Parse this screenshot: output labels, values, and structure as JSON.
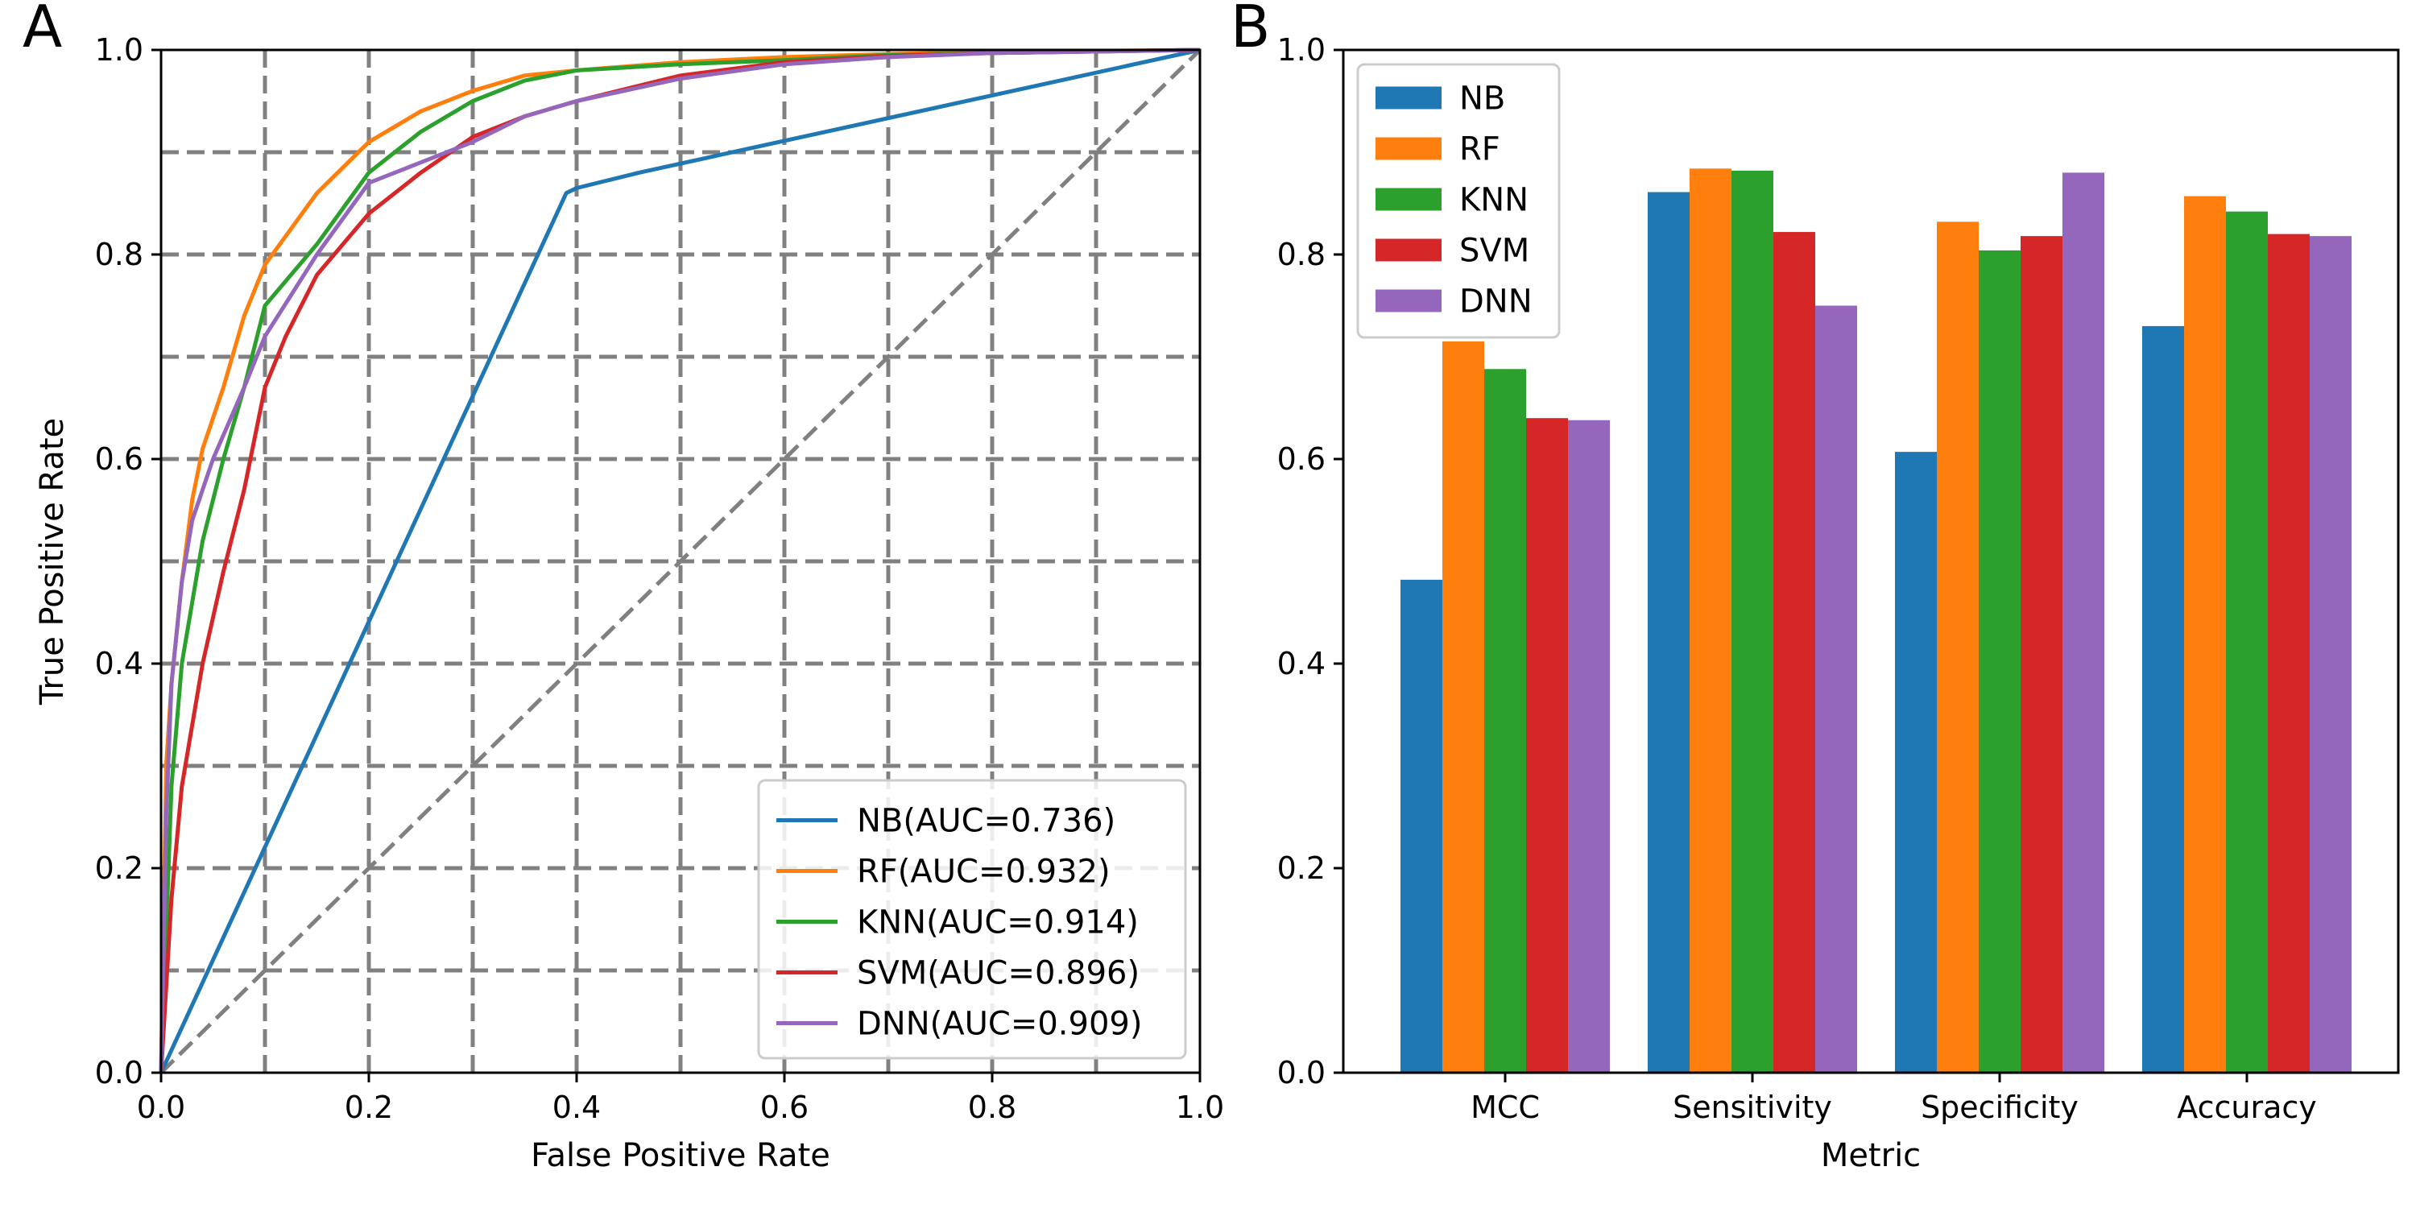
{
  "chart_data": [
    {
      "panel_label": "A",
      "type": "line",
      "xlabel": "False Positive Rate",
      "ylabel": "True Positive Rate",
      "xlim": [
        0.0,
        1.0
      ],
      "ylim": [
        0.0,
        1.0
      ],
      "xticks": [
        "0.0",
        "0.2",
        "0.4",
        "0.6",
        "0.8",
        "1.0"
      ],
      "yticks": [
        "0.0",
        "0.2",
        "0.4",
        "0.6",
        "0.8",
        "1.0"
      ],
      "grid": true,
      "legend_position": "lower-right",
      "diagonal_reference": true,
      "series": [
        {
          "name": "NB(AUC=0.736)",
          "color": "#1f77b4",
          "x": [
            0,
            0.39,
            0.4,
            0.46,
            1.0
          ],
          "y": [
            0,
            0.86,
            0.865,
            0.88,
            1.0
          ]
        },
        {
          "name": "RF(AUC=0.932)",
          "color": "#ff7f0e",
          "x": [
            0,
            0.005,
            0.01,
            0.02,
            0.03,
            0.04,
            0.06,
            0.08,
            0.1,
            0.15,
            0.2,
            0.25,
            0.3,
            0.35,
            0.4,
            0.5,
            0.6,
            0.7,
            0.8,
            1.0
          ],
          "y": [
            0,
            0.3,
            0.38,
            0.48,
            0.56,
            0.61,
            0.67,
            0.74,
            0.79,
            0.86,
            0.91,
            0.94,
            0.96,
            0.975,
            0.98,
            0.988,
            0.993,
            0.996,
            0.998,
            1.0
          ]
        },
        {
          "name": "KNN(AUC=0.914)",
          "color": "#2ca02c",
          "x": [
            0,
            0.01,
            0.02,
            0.04,
            0.06,
            0.08,
            0.1,
            0.15,
            0.2,
            0.25,
            0.3,
            0.35,
            0.4,
            0.5,
            0.6,
            0.7,
            0.8,
            1.0
          ],
          "y": [
            0,
            0.28,
            0.4,
            0.52,
            0.6,
            0.67,
            0.75,
            0.81,
            0.88,
            0.92,
            0.95,
            0.97,
            0.98,
            0.986,
            0.99,
            0.995,
            0.997,
            1.0
          ]
        },
        {
          "name": "SVM(AUC=0.896)",
          "color": "#d62728",
          "x": [
            0,
            0.01,
            0.02,
            0.04,
            0.06,
            0.08,
            0.1,
            0.12,
            0.15,
            0.2,
            0.25,
            0.3,
            0.35,
            0.4,
            0.5,
            0.6,
            0.7,
            0.8,
            1.0
          ],
          "y": [
            0,
            0.17,
            0.28,
            0.4,
            0.49,
            0.57,
            0.67,
            0.72,
            0.78,
            0.84,
            0.88,
            0.915,
            0.935,
            0.95,
            0.975,
            0.988,
            0.994,
            0.997,
            1.0
          ]
        },
        {
          "name": "DNN(AUC=0.909)",
          "color": "#9467bd",
          "x": [
            0,
            0.005,
            0.01,
            0.02,
            0.03,
            0.05,
            0.08,
            0.1,
            0.15,
            0.2,
            0.25,
            0.3,
            0.35,
            0.4,
            0.5,
            0.6,
            0.7,
            0.8,
            1.0
          ],
          "y": [
            0,
            0.25,
            0.38,
            0.48,
            0.54,
            0.6,
            0.67,
            0.72,
            0.8,
            0.87,
            0.89,
            0.91,
            0.935,
            0.95,
            0.972,
            0.986,
            0.993,
            0.997,
            1.0
          ]
        }
      ]
    },
    {
      "panel_label": "B",
      "type": "bar",
      "xlabel": "Metric",
      "ylabel": "",
      "ylim": [
        0.0,
        1.0
      ],
      "yticks": [
        "0.0",
        "0.2",
        "0.4",
        "0.6",
        "0.8",
        "1.0"
      ],
      "grid": false,
      "legend_position": "top-left",
      "categories": [
        "MCC",
        "Sensitivity",
        "Specificity",
        "Accuracy"
      ],
      "series": [
        {
          "name": "NB",
          "color": "#1f77b4",
          "values": [
            0.482,
            0.861,
            0.607,
            0.73
          ]
        },
        {
          "name": "RF",
          "color": "#ff7f0e",
          "values": [
            0.715,
            0.884,
            0.832,
            0.857
          ]
        },
        {
          "name": "KNN",
          "color": "#2ca02c",
          "values": [
            0.688,
            0.882,
            0.804,
            0.842
          ]
        },
        {
          "name": "SVM",
          "color": "#d62728",
          "values": [
            0.64,
            0.822,
            0.818,
            0.82
          ]
        },
        {
          "name": "DNN",
          "color": "#9467bd",
          "values": [
            0.638,
            0.75,
            0.88,
            0.818
          ]
        }
      ]
    }
  ]
}
